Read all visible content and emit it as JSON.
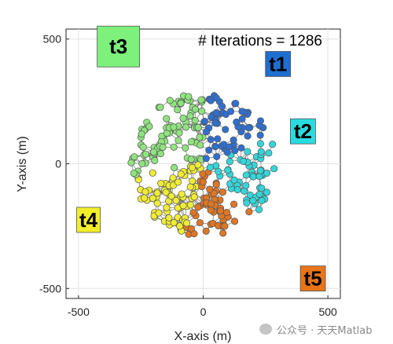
{
  "chart_data": {
    "type": "scatter",
    "title": "# Iterations = 1286",
    "xlabel": "X-axis (m)",
    "ylabel": "Y-axis (m)",
    "xlim": [
      -550,
      550
    ],
    "ylim": [
      -540,
      540
    ],
    "xticks": [
      -500,
      0,
      500
    ],
    "yticks": [
      500,
      0,
      -500
    ],
    "xtick_labels": [
      "-500",
      "0",
      "500"
    ],
    "ytick_labels": [
      "500",
      "0",
      "-500"
    ],
    "grid": true,
    "targets": [
      {
        "name": "t3",
        "x": -340,
        "y": 470,
        "color": "#7ef07c"
      },
      {
        "name": "t1",
        "x": 300,
        "y": 400,
        "color": "#1f6fd1"
      },
      {
        "name": "t2",
        "x": 400,
        "y": 130,
        "color": "#29dbe0"
      },
      {
        "name": "t4",
        "x": -460,
        "y": -225,
        "color": "#f2ee2a"
      },
      {
        "name": "t5",
        "x": 440,
        "y": -460,
        "color": "#e87518"
      }
    ],
    "swarm": {
      "center": [
        0,
        0
      ],
      "radius": 290,
      "groups": [
        {
          "target": "t1",
          "color": "#2f6fd0",
          "angle_deg": [
            22,
            90
          ]
        },
        {
          "target": "t2",
          "color": "#33d6da",
          "angle_deg": [
            -45,
            22
          ]
        },
        {
          "target": "t3",
          "color": "#8fe37f",
          "angle_deg": [
            90,
            190
          ]
        },
        {
          "target": "t4",
          "color": "#f0ec34",
          "angle_deg": [
            190,
            255
          ]
        },
        {
          "target": "t5",
          "color": "#df7624",
          "angle_deg": [
            255,
            315
          ]
        }
      ]
    }
  },
  "watermark": "公众号 · 天天Matlab"
}
